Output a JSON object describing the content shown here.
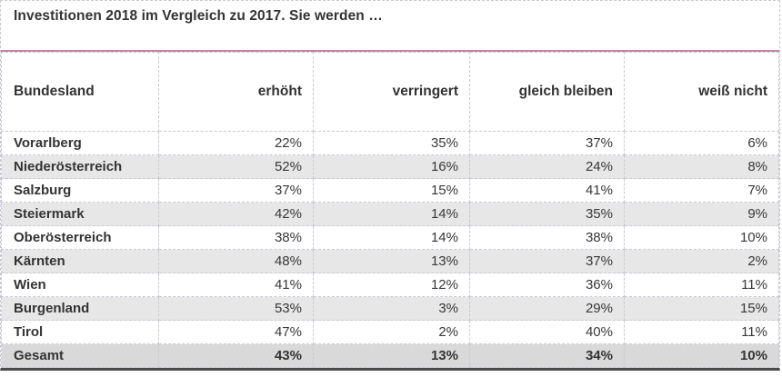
{
  "title": "Investitionen 2018 im Vergleich zu 2017. Sie werden …",
  "columns": [
    "Bundesland",
    "erhöht",
    "verringert",
    "gleich bleiben",
    "weiß nicht"
  ],
  "rows": [
    {
      "label": "Vorarlberg",
      "values": [
        "22%",
        "35%",
        "37%",
        "6%"
      ],
      "is_total": false
    },
    {
      "label": "Niederösterreich",
      "values": [
        "52%",
        "16%",
        "24%",
        "8%"
      ],
      "is_total": false
    },
    {
      "label": "Salzburg",
      "values": [
        "37%",
        "15%",
        "41%",
        "7%"
      ],
      "is_total": false
    },
    {
      "label": "Steiermark",
      "values": [
        "42%",
        "14%",
        "35%",
        "9%"
      ],
      "is_total": false
    },
    {
      "label": "Oberösterreich",
      "values": [
        "38%",
        "14%",
        "38%",
        "10%"
      ],
      "is_total": false
    },
    {
      "label": "Kärnten",
      "values": [
        "48%",
        "13%",
        "37%",
        "2%"
      ],
      "is_total": false
    },
    {
      "label": "Wien",
      "values": [
        "41%",
        "12%",
        "36%",
        "11%"
      ],
      "is_total": false
    },
    {
      "label": "Burgenland",
      "values": [
        "53%",
        "3%",
        "29%",
        "15%"
      ],
      "is_total": false
    },
    {
      "label": "Tirol",
      "values": [
        "47%",
        "2%",
        "40%",
        "11%"
      ],
      "is_total": false
    },
    {
      "label": "Gesamt",
      "values": [
        "43%",
        "13%",
        "34%",
        "10%"
      ],
      "is_total": true
    }
  ],
  "colors": {
    "accent_line": "#c4849e",
    "row_alt_bg": "#e7e7e7",
    "total_row_bg": "#d9d9d9",
    "bottom_border": "#4a4a4a",
    "dashed_border": "#c9c9d6",
    "text": "#333333"
  },
  "chart_data": {
    "type": "table",
    "title": "Investitionen 2018 im Vergleich zu 2017. Sie werden …",
    "unit": "%",
    "categories": [
      "Vorarlberg",
      "Niederösterreich",
      "Salzburg",
      "Steiermark",
      "Oberösterreich",
      "Kärnten",
      "Wien",
      "Burgenland",
      "Tirol",
      "Gesamt"
    ],
    "series": [
      {
        "name": "erhöht",
        "values": [
          22,
          52,
          37,
          42,
          38,
          48,
          41,
          53,
          47,
          43
        ]
      },
      {
        "name": "verringert",
        "values": [
          35,
          16,
          15,
          14,
          14,
          13,
          12,
          3,
          2,
          13
        ]
      },
      {
        "name": "gleich bleiben",
        "values": [
          37,
          24,
          41,
          35,
          38,
          37,
          36,
          29,
          40,
          34
        ]
      },
      {
        "name": "weiß nicht",
        "values": [
          6,
          8,
          7,
          9,
          10,
          2,
          11,
          15,
          11,
          10
        ]
      }
    ],
    "layout": {
      "total_row": "Gesamt",
      "alternating_row_shading": true,
      "grid": "dashed"
    }
  }
}
